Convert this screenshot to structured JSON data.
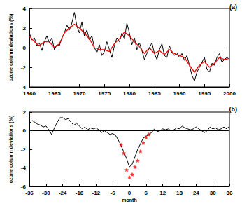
{
  "chart_data": [
    {
      "type": "line",
      "title": "(a)",
      "y_label": "ozone column deviations (%)",
      "xlim": [
        1960,
        2000
      ],
      "xticks": [
        1960,
        1965,
        1970,
        1975,
        1980,
        1985,
        1990,
        1995,
        2000
      ],
      "ylim": [
        -4,
        4
      ],
      "yticks": [
        -4,
        -2,
        0,
        2,
        4
      ],
      "hlines": [
        0
      ],
      "grid": false,
      "series": [
        {
          "type": "line",
          "color": "#000000",
          "x": [
            1960,
            1960.5,
            1961,
            1961.5,
            1962,
            1962.5,
            1963,
            1963.5,
            1964,
            1964.5,
            1965,
            1965.5,
            1966,
            1966.5,
            1967,
            1967.5,
            1968,
            1968.5,
            1969,
            1969.5,
            1970,
            1970.5,
            1971,
            1971.5,
            1972,
            1972.5,
            1973,
            1973.5,
            1974,
            1974.5,
            1975,
            1975.5,
            1976,
            1976.5,
            1977,
            1977.5,
            1978,
            1978.5,
            1979,
            1979.5,
            1980,
            1980.5,
            1981,
            1981.5,
            1982,
            1982.5,
            1983,
            1983.5,
            1984,
            1984.5,
            1985,
            1985.5,
            1986,
            1986.5,
            1987,
            1987.5,
            1988,
            1988.5,
            1989,
            1989.5,
            1990,
            1990.5,
            1991,
            1991.5,
            1992,
            1992.5,
            1993,
            1993.5,
            1994,
            1994.5,
            1995,
            1995.5,
            1996,
            1996.5,
            1997,
            1997.5,
            1998,
            1998.5,
            1999,
            1999.5,
            2000
          ],
          "values": [
            1.5,
            0.8,
            1.0,
            0.2,
            0.5,
            -0.3,
            0.6,
            1.2,
            0.5,
            1.0,
            -0.2,
            0.3,
            0.2,
            1.0,
            1.5,
            2.3,
            1.8,
            2.5,
            3.6,
            2.2,
            1.5,
            2.6,
            1.2,
            1.8,
            0.8,
            1.2,
            0.0,
            -0.5,
            0.3,
            -0.8,
            -0.4,
            0.6,
            -0.2,
            -1.0,
            0.2,
            1.0,
            0.6,
            1.5,
            0.9,
            2.5,
            1.5,
            0.3,
            1.0,
            -0.2,
            0.5,
            -0.3,
            -1.2,
            -0.6,
            0.0,
            0.5,
            -0.6,
            -1.2,
            -0.2,
            0.4,
            -0.8,
            -1.0,
            0.2,
            -0.5,
            -0.8,
            -0.5,
            -1.0,
            -0.6,
            -1.3,
            -0.8,
            -1.8,
            -2.8,
            -3.4,
            -2.5,
            -2.0,
            -1.5,
            -1.0,
            -2.2,
            -2.5,
            -1.6,
            -1.8,
            -1.0,
            -0.6,
            -1.5,
            -1.2,
            -1.0,
            -1.2
          ]
        },
        {
          "type": "line",
          "color": "#ff0000",
          "x": [
            1960,
            1961,
            1962,
            1963,
            1964,
            1965,
            1966,
            1967,
            1968,
            1969,
            1970,
            1971,
            1972,
            1973,
            1974,
            1975,
            1976,
            1977,
            1978,
            1979,
            1980,
            1981,
            1982,
            1983,
            1984,
            1985,
            1986,
            1987,
            1988,
            1989,
            1990,
            1991,
            1992,
            1993,
            1994,
            1995,
            1996,
            1997,
            1998,
            1999,
            2000
          ],
          "values": [
            1.2,
            0.6,
            0.2,
            0.6,
            0.6,
            0.0,
            0.4,
            1.5,
            2.0,
            2.4,
            2.0,
            1.5,
            0.9,
            0.0,
            -0.2,
            -0.2,
            -0.4,
            0.4,
            0.9,
            1.6,
            1.2,
            0.6,
            0.1,
            -0.6,
            0.0,
            -0.6,
            -0.3,
            -0.7,
            -0.2,
            -0.6,
            -0.8,
            -1.0,
            -1.8,
            -2.5,
            -1.8,
            -1.4,
            -2.0,
            -1.6,
            -1.0,
            -1.2,
            -1.1
          ]
        }
      ]
    },
    {
      "type": "line",
      "title": "(b)",
      "x_label": "month",
      "y_label": "ozone column deviations (%)",
      "xlim": [
        -36,
        36
      ],
      "xticks": [
        -36,
        -30,
        -24,
        -18,
        -12,
        -6,
        0,
        6,
        12,
        18,
        24,
        30,
        36
      ],
      "ylim": [
        -6,
        2
      ],
      "yticks": [
        -6,
        -4,
        -2,
        0,
        2
      ],
      "hlines": [
        0
      ],
      "grid": false,
      "series": [
        {
          "type": "line",
          "color": "#000000",
          "x": [
            -36,
            -35,
            -34,
            -33,
            -32,
            -31,
            -30,
            -29,
            -28,
            -27,
            -26,
            -25,
            -24,
            -23,
            -22,
            -21,
            -20,
            -19,
            -18,
            -17,
            -16,
            -15,
            -14,
            -13,
            -12,
            -11,
            -10,
            -9,
            -8,
            -7,
            -6,
            -5,
            -4,
            -3,
            -2,
            -1,
            0,
            1,
            2,
            3,
            4,
            5,
            6,
            7,
            8,
            9,
            10,
            11,
            12,
            13,
            14,
            15,
            16,
            17,
            18,
            19,
            20,
            21,
            22,
            23,
            24,
            25,
            26,
            27,
            28,
            29,
            30,
            31,
            32,
            33,
            34,
            35,
            36
          ],
          "values": [
            0.8,
            1.1,
            0.9,
            0.7,
            0.6,
            0.4,
            0.5,
            0.1,
            -0.4,
            0.3,
            0.9,
            1.4,
            1.4,
            1.2,
            1.3,
            0.9,
            0.6,
            0.8,
            0.5,
            0.2,
            0.4,
            0.1,
            0.3,
            0.2,
            0.3,
            0.1,
            -0.2,
            0.0,
            -0.2,
            -0.4,
            -0.3,
            -0.5,
            -1.0,
            -1.6,
            -2.3,
            -3.0,
            -3.9,
            -3.6,
            -2.8,
            -2.0,
            -1.4,
            -0.8,
            -0.6,
            -0.4,
            -0.2,
            0.2,
            -0.1,
            0.0,
            0.2,
            0.1,
            0.2,
            0.0,
            0.1,
            0.3,
            0.2,
            0.5,
            0.3,
            0.2,
            0.1,
            0.2,
            0.4,
            0.2,
            0.0,
            -0.2,
            0.0,
            0.4,
            0.2,
            0.3,
            0.1,
            0.2,
            0.4,
            0.2,
            0.5
          ]
        },
        {
          "type": "scatter",
          "color": "#ff0000",
          "marker": "star",
          "x": [
            -3,
            -2,
            -1,
            0,
            1,
            2,
            3,
            4,
            5,
            6,
            7
          ],
          "values": [
            -1.5,
            -2.4,
            -4.2,
            -5.0,
            -4.7,
            -3.9,
            -3.2,
            -2.2,
            -1.3,
            -0.7,
            -0.4
          ]
        }
      ]
    }
  ]
}
